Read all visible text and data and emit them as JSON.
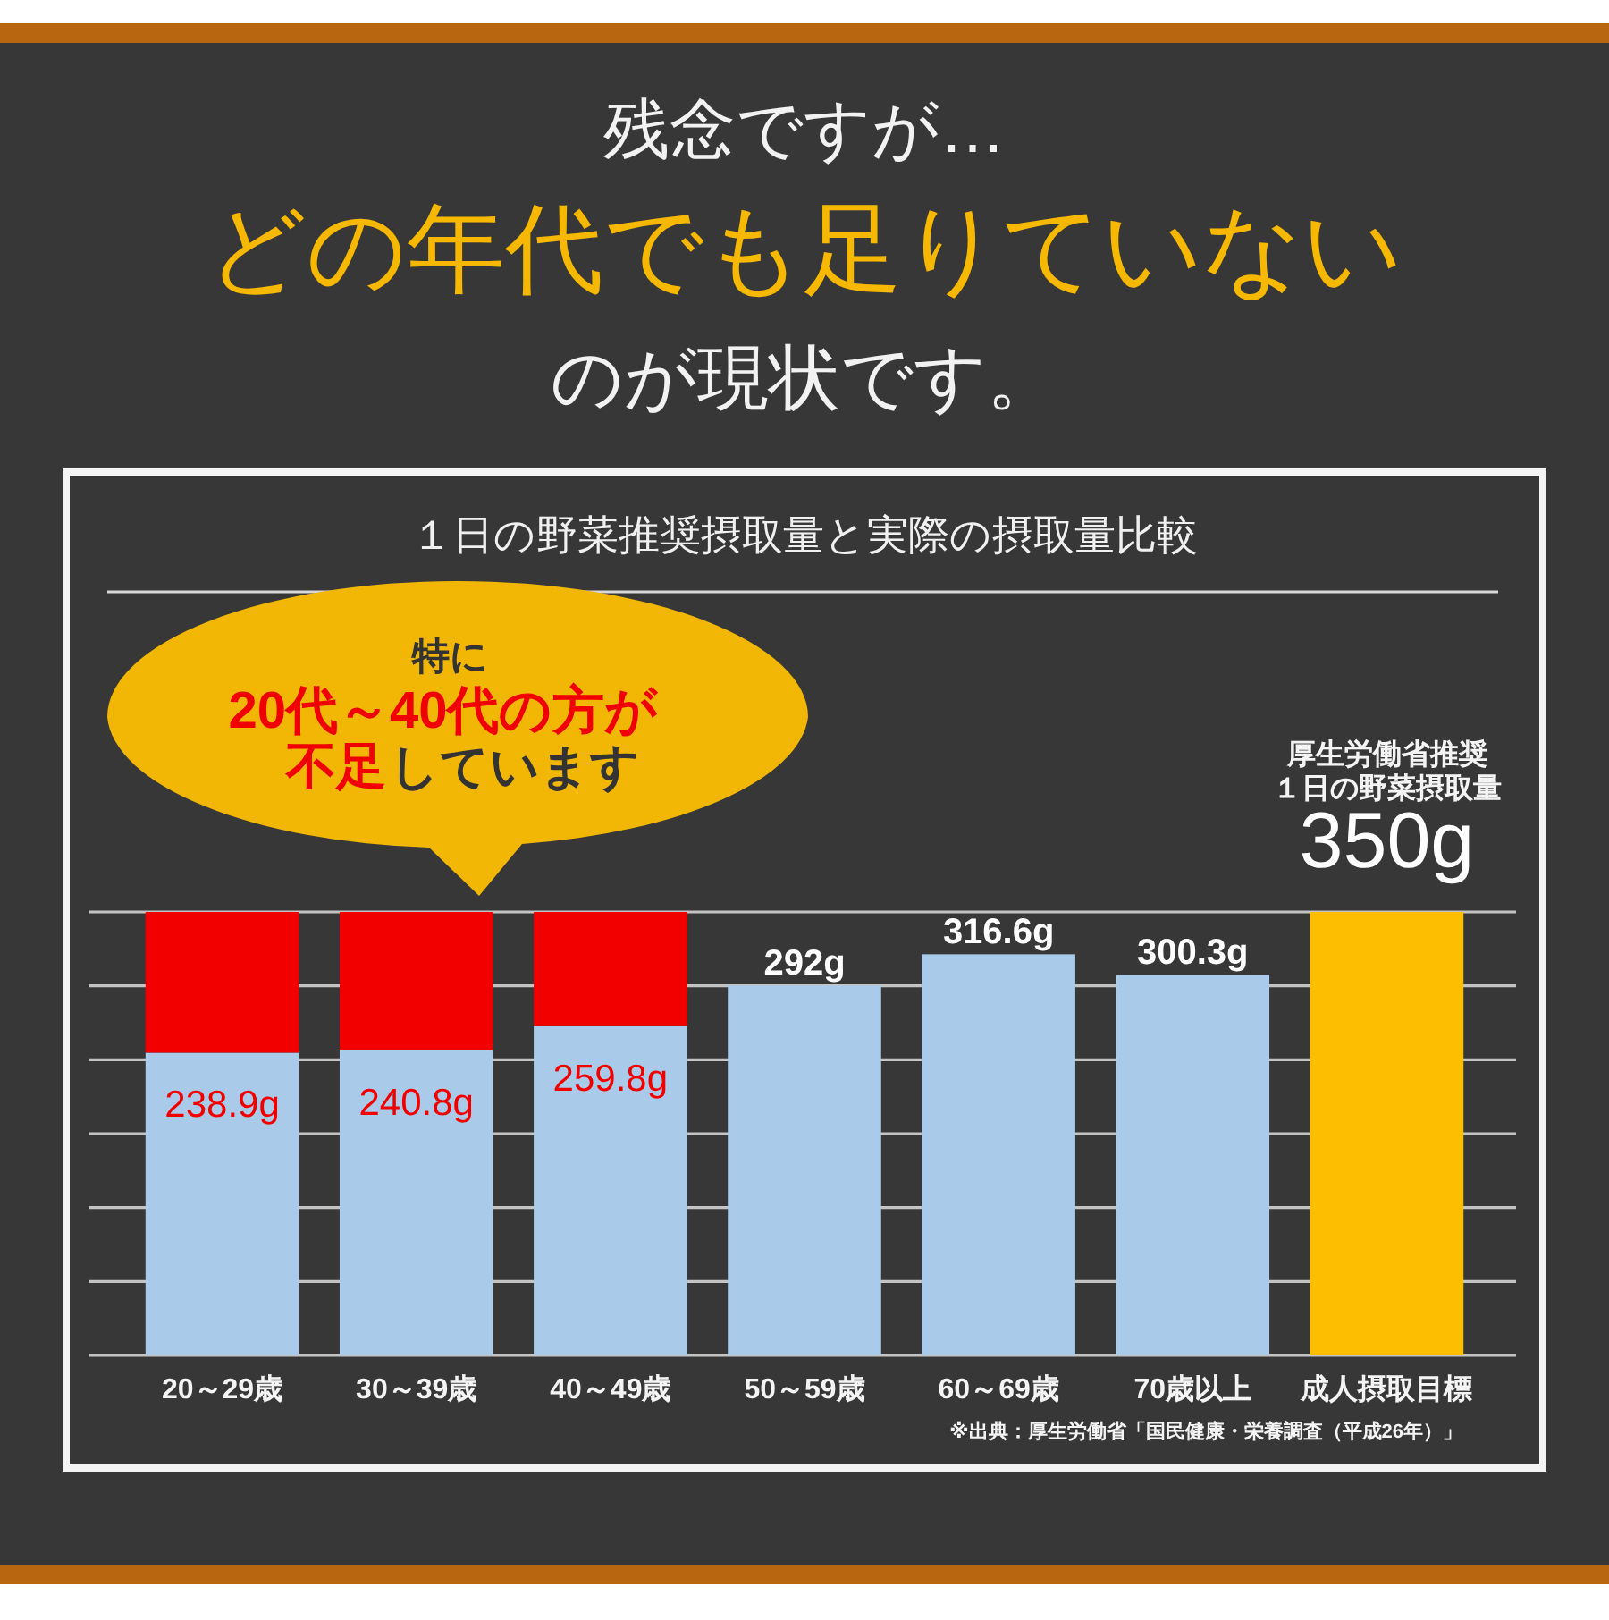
{
  "chart_data": {
    "type": "bar",
    "title": "１日の野菜推奨摂取量と実際の摂取量比較",
    "categories": [
      "20～29歳",
      "30～39歳",
      "40～49歳",
      "50～59歳",
      "60～69歳",
      "70歳以上",
      "成人摂取目標"
    ],
    "stacked": true,
    "series": [
      {
        "color": "#a9cbe9",
        "values": [
          238.9,
          240.8,
          259.8,
          292,
          316.6,
          300.3,
          null
        ],
        "value_labels": [
          "238.9g",
          "240.8g",
          "259.8g",
          "292g",
          "316.6g",
          "300.3g",
          null
        ]
      },
      {
        "color": "#f20000",
        "values": [
          111.1,
          109.2,
          90.2,
          null,
          null,
          null,
          null
        ]
      },
      {
        "color": "#fdbd00",
        "values": [
          null,
          null,
          null,
          null,
          null,
          null,
          350
        ],
        "value_labels": [
          null,
          null,
          null,
          null,
          null,
          null,
          "350g"
        ]
      }
    ],
    "ylim": [
      0,
      350
    ],
    "yticks": [
      {
        "value": 0,
        "label": null
      },
      {
        "value": 58.3,
        "label": null
      },
      {
        "value": 116.7,
        "label": null
      },
      {
        "value": 175,
        "label": null
      },
      {
        "value": 233.3,
        "label": null
      },
      {
        "value": 291.7,
        "label": null
      },
      {
        "value": 350,
        "label": null
      }
    ],
    "grid": "y",
    "tick_labels": "x",
    "annotations": [
      "残念ですが…",
      "どの年代でも足りていない",
      "のが現状です。",
      "特に",
      "20代～40代の方が",
      "不足",
      "しています",
      "厚生労働省推奨",
      "１日の野菜摂取量",
      "※出典：厚生労働省「国民健康・栄養調査（平成26年）」"
    ]
  }
}
